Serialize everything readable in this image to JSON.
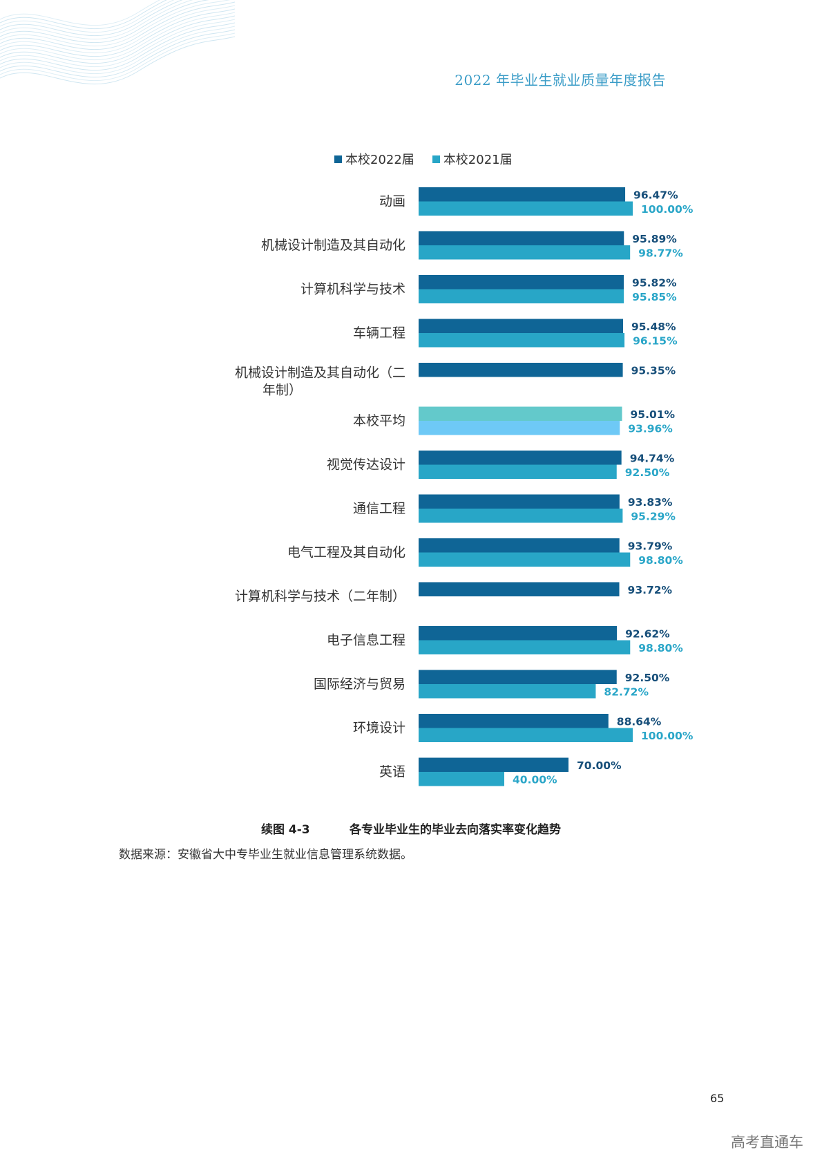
{
  "header": {
    "title": "2022 年毕业生就业质量年度报告"
  },
  "legend": {
    "items": [
      {
        "label": "本校2022届",
        "color": "#0f6596"
      },
      {
        "label": "本校2021届",
        "color": "#28a6c7"
      }
    ]
  },
  "chart_data": {
    "type": "bar",
    "orientation": "horizontal",
    "categories": [
      "动画",
      "机械设计制造及其自动化",
      "计算机科学与技术",
      "车辆工程",
      "机械设计制造及其自动化（二年制）",
      "本校平均",
      "视觉传达设计",
      "通信工程",
      "电气工程及其自动化",
      "计算机科学与技术（二年制）",
      "电子信息工程",
      "国际经济与贸易",
      "环境设计",
      "英语"
    ],
    "series": [
      {
        "name": "本校2022届",
        "color": "#0f6596",
        "highlight_color": "#63c9cb",
        "values": [
          96.47,
          95.89,
          95.82,
          95.48,
          95.35,
          95.01,
          94.74,
          93.83,
          93.79,
          93.72,
          92.62,
          92.5,
          88.64,
          70.0
        ],
        "labels": [
          "96.47%",
          "95.89%",
          "95.82%",
          "95.48%",
          "95.35%",
          "95.01%",
          "94.74%",
          "93.83%",
          "93.79%",
          "93.72%",
          "92.62%",
          "92.50%",
          "88.64%",
          "70.00%"
        ]
      },
      {
        "name": "本校2021届",
        "color": "#28a6c7",
        "highlight_color": "#6ec9f6",
        "values": [
          100.0,
          98.77,
          95.85,
          96.15,
          null,
          93.96,
          92.5,
          95.29,
          98.8,
          null,
          98.8,
          82.72,
          100.0,
          40.0
        ],
        "labels": [
          "100.00%",
          "98.77%",
          "95.85%",
          "96.15%",
          "",
          "93.96%",
          "92.50%",
          "95.29%",
          "98.80%",
          "",
          "98.80%",
          "82.72%",
          "100.00%",
          "40.00%"
        ]
      }
    ],
    "highlight_category": "本校平均",
    "xlim": [
      0,
      100
    ],
    "grid": false,
    "legend_position": "top"
  },
  "caption": {
    "number": "续图 4-3",
    "title": "各专业毕业生的毕业去向落实率变化趋势"
  },
  "source_note": "数据来源：安徽省大中专毕业生就业信息管理系统数据。",
  "page_number": "65",
  "watermark": "高考直通车"
}
